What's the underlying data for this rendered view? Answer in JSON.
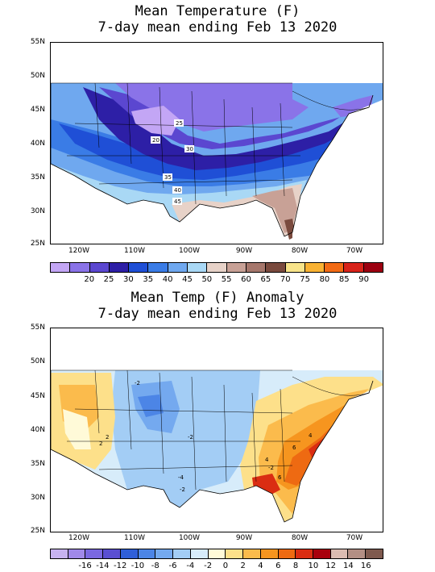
{
  "top": {
    "title_line1": "Mean Temperature (F)",
    "title_line2": "7-day mean ending Feb 13 2020",
    "lat_labels": [
      "55N",
      "50N",
      "45N",
      "40N",
      "35N",
      "30N",
      "25N"
    ],
    "lon_labels": [
      "120W",
      "110W",
      "100W",
      "90W",
      "80W",
      "70W"
    ],
    "contour_labels": [
      "25",
      "20",
      "30",
      "35",
      "40",
      "45"
    ],
    "colorbar": {
      "colors": [
        "#c3a6f5",
        "#8a73e8",
        "#5b47d0",
        "#2d1fa6",
        "#1f4fd6",
        "#3a7ce6",
        "#6fa8ef",
        "#a9d8f5",
        "#e7d2c8",
        "#c8a196",
        "#a6776c",
        "#7a4a3e",
        "#f8e48a",
        "#f9b233",
        "#f26a14",
        "#d8231a",
        "#9c0010"
      ],
      "labels": [
        "20",
        "25",
        "30",
        "35",
        "40",
        "45",
        "50",
        "55",
        "60",
        "65",
        "70",
        "75",
        "80",
        "85",
        "90"
      ]
    }
  },
  "bottom": {
    "title_line1": "Mean Temp (F) Anomaly",
    "title_line2": "7-day mean ending Feb 13 2020",
    "lat_labels": [
      "55N",
      "50N",
      "45N",
      "40N",
      "35N",
      "30N",
      "25N"
    ],
    "lon_labels": [
      "120W",
      "110W",
      "100W",
      "90W",
      "80W",
      "70W"
    ],
    "contour_labels": [
      "2",
      "-2",
      "-2",
      "2",
      "4",
      "6",
      "-4",
      "-2",
      "-2",
      "4",
      "6"
    ],
    "colorbar": {
      "colors": [
        "#c7b3f0",
        "#a089e8",
        "#7a68e0",
        "#5a4fd2",
        "#2f5fd8",
        "#4c85e6",
        "#74a9ef",
        "#a3cdf5",
        "#d7ecfa",
        "#fffad8",
        "#fde08a",
        "#fbbb4c",
        "#f6951f",
        "#ee6a12",
        "#da2d12",
        "#a8000c",
        "#dcbcb2",
        "#b38f84",
        "#7f5a4e"
      ],
      "labels": [
        "-16",
        "-14",
        "-12",
        "-10",
        "-8",
        "-6",
        "-4",
        "-2",
        "0",
        "2",
        "4",
        "6",
        "8",
        "10",
        "12",
        "14",
        "16"
      ]
    }
  }
}
